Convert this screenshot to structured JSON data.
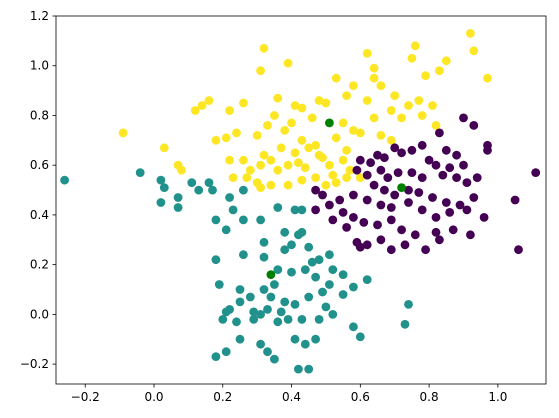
{
  "chart_data": {
    "type": "scatter",
    "title": "",
    "xlabel": "",
    "ylabel": "",
    "xlim": [
      -0.285,
      1.14
    ],
    "ylim": [
      -0.28,
      1.2
    ],
    "x_ticks": [
      -0.2,
      0.0,
      0.2,
      0.4,
      0.6,
      0.8,
      1.0
    ],
    "x_tick_labels": [
      "−0.2",
      "0.0",
      "0.2",
      "0.4",
      "0.6",
      "0.8",
      "1.0"
    ],
    "y_ticks": [
      -0.2,
      0.0,
      0.2,
      0.4,
      0.6,
      0.8,
      1.0,
      1.2
    ],
    "y_tick_labels": [
      "−0.2",
      "0.0",
      "0.2",
      "0.4",
      "0.6",
      "0.8",
      "1.0",
      "1.2"
    ],
    "grid": false,
    "colors": {
      "cluster_yellow": "#fde725",
      "cluster_teal": "#21918c",
      "cluster_purple": "#440154",
      "centroid": "#008000"
    },
    "series": [
      {
        "color": "#fde725",
        "points": [
          [
            0.32,
            1.07
          ],
          [
            0.31,
            0.98
          ],
          [
            0.39,
            1.01
          ],
          [
            0.62,
            1.05
          ],
          [
            0.64,
            0.99
          ],
          [
            0.76,
            1.08
          ],
          [
            0.75,
            1.03
          ],
          [
            0.92,
            1.13
          ],
          [
            0.93,
            1.06
          ],
          [
            0.85,
            1.02
          ],
          [
            0.79,
            0.96
          ],
          [
            0.83,
            0.98
          ],
          [
            0.97,
            0.95
          ],
          [
            0.53,
            0.95
          ],
          [
            0.58,
            0.92
          ],
          [
            0.56,
            0.88
          ],
          [
            0.64,
            0.95
          ],
          [
            0.66,
            0.92
          ],
          [
            0.62,
            0.86
          ],
          [
            0.7,
            0.88
          ],
          [
            0.74,
            0.84
          ],
          [
            0.77,
            0.86
          ],
          [
            0.81,
            0.84
          ],
          [
            0.69,
            0.82
          ],
          [
            0.72,
            0.79
          ],
          [
            0.78,
            0.8
          ],
          [
            0.82,
            0.76
          ],
          [
            0.64,
            0.79
          ],
          [
            0.14,
            0.84
          ],
          [
            0.16,
            0.86
          ],
          [
            0.12,
            0.82
          ],
          [
            0.22,
            0.82
          ],
          [
            0.26,
            0.85
          ],
          [
            0.36,
            0.87
          ],
          [
            0.41,
            0.84
          ],
          [
            0.43,
            0.83
          ],
          [
            0.48,
            0.86
          ],
          [
            0.5,
            0.85
          ],
          [
            0.35,
            0.8
          ],
          [
            0.4,
            0.77
          ],
          [
            0.46,
            0.79
          ],
          [
            0.55,
            0.77
          ],
          [
            0.58,
            0.74
          ],
          [
            0.6,
            0.73
          ],
          [
            0.66,
            0.72
          ],
          [
            0.69,
            0.7
          ],
          [
            -0.09,
            0.73
          ],
          [
            0.18,
            0.7
          ],
          [
            0.21,
            0.71
          ],
          [
            0.24,
            0.73
          ],
          [
            0.3,
            0.72
          ],
          [
            0.33,
            0.76
          ],
          [
            0.38,
            0.74
          ],
          [
            0.43,
            0.7
          ],
          [
            0.47,
            0.68
          ],
          [
            0.53,
            0.71
          ],
          [
            0.56,
            0.66
          ],
          [
            0.48,
            0.64
          ],
          [
            0.45,
            0.67
          ],
          [
            0.37,
            0.67
          ],
          [
            0.41,
            0.65
          ],
          [
            0.03,
            0.67
          ],
          [
            0.07,
            0.6
          ],
          [
            0.08,
            0.58
          ],
          [
            0.22,
            0.62
          ],
          [
            0.26,
            0.62
          ],
          [
            0.28,
            0.58
          ],
          [
            0.32,
            0.64
          ],
          [
            0.34,
            0.62
          ],
          [
            0.31,
            0.6
          ],
          [
            0.36,
            0.58
          ],
          [
            0.39,
            0.6
          ],
          [
            0.42,
            0.61
          ],
          [
            0.44,
            0.59
          ],
          [
            0.49,
            0.63
          ],
          [
            0.51,
            0.6
          ],
          [
            0.55,
            0.62
          ],
          [
            0.57,
            0.58
          ],
          [
            0.6,
            0.55
          ],
          [
            0.52,
            0.56
          ],
          [
            0.23,
            0.55
          ],
          [
            0.3,
            0.53
          ],
          [
            0.34,
            0.52
          ],
          [
            0.39,
            0.52
          ],
          [
            0.31,
            0.51
          ],
          [
            0.27,
            0.55
          ],
          [
            0.43,
            0.54
          ],
          [
            0.47,
            0.55
          ],
          [
            0.5,
            0.52
          ],
          [
            0.53,
            0.53
          ],
          [
            0.56,
            0.55
          ]
        ]
      },
      {
        "color": "#21918c",
        "points": [
          [
            -0.26,
            0.54
          ],
          [
            -0.04,
            0.57
          ],
          [
            0.02,
            0.54
          ],
          [
            0.03,
            0.51
          ],
          [
            0.07,
            0.47
          ],
          [
            0.07,
            0.43
          ],
          [
            0.11,
            0.53
          ],
          [
            0.13,
            0.5
          ],
          [
            0.16,
            0.53
          ],
          [
            0.17,
            0.5
          ],
          [
            0.02,
            0.45
          ],
          [
            0.18,
            0.38
          ],
          [
            0.22,
            0.47
          ],
          [
            0.26,
            0.5
          ],
          [
            0.23,
            0.42
          ],
          [
            0.26,
            0.38
          ],
          [
            0.31,
            0.38
          ],
          [
            0.21,
            0.34
          ],
          [
            0.26,
            0.24
          ],
          [
            0.32,
            0.29
          ],
          [
            0.32,
            0.23
          ],
          [
            0.36,
            0.43
          ],
          [
            0.41,
            0.42
          ],
          [
            0.43,
            0.42
          ],
          [
            0.38,
            0.33
          ],
          [
            0.42,
            0.32
          ],
          [
            0.43,
            0.33
          ],
          [
            0.4,
            0.28
          ],
          [
            0.45,
            0.27
          ],
          [
            0.38,
            0.26
          ],
          [
            0.36,
            0.18
          ],
          [
            0.4,
            0.17
          ],
          [
            0.44,
            0.18
          ],
          [
            0.46,
            0.21
          ],
          [
            0.48,
            0.22
          ],
          [
            0.51,
            0.24
          ],
          [
            0.47,
            0.15
          ],
          [
            0.51,
            0.12
          ],
          [
            0.49,
            0.09
          ],
          [
            0.55,
            0.08
          ],
          [
            0.58,
            0.11
          ],
          [
            0.62,
            0.14
          ],
          [
            0.55,
            0.16
          ],
          [
            0.52,
            0.18
          ],
          [
            0.18,
            0.22
          ],
          [
            0.19,
            0.12
          ],
          [
            0.22,
            0.02
          ],
          [
            0.25,
            0.1
          ],
          [
            0.28,
            0.07
          ],
          [
            0.32,
            0.1
          ],
          [
            0.35,
            0.12
          ],
          [
            0.34,
            0.07
          ],
          [
            0.38,
            0.05
          ],
          [
            0.41,
            0.04
          ],
          [
            0.45,
            0.07
          ],
          [
            0.5,
            0.03
          ],
          [
            0.37,
            0.01
          ],
          [
            0.33,
            0.02
          ],
          [
            0.29,
            0.01
          ],
          [
            0.25,
            0.05
          ],
          [
            0.21,
            0.01
          ],
          [
            0.2,
            -0.02
          ],
          [
            0.24,
            -0.03
          ],
          [
            0.29,
            -0.02
          ],
          [
            0.31,
            0.0
          ],
          [
            0.36,
            -0.03
          ],
          [
            0.39,
            -0.02
          ],
          [
            0.43,
            -0.02
          ],
          [
            0.48,
            -0.02
          ],
          [
            0.52,
            0.0
          ],
          [
            0.58,
            -0.05
          ],
          [
            0.6,
            -0.09
          ],
          [
            0.41,
            -0.1
          ],
          [
            0.44,
            -0.12
          ],
          [
            0.47,
            -0.1
          ],
          [
            0.25,
            -0.1
          ],
          [
            0.31,
            -0.12
          ],
          [
            0.18,
            -0.17
          ],
          [
            0.21,
            -0.15
          ],
          [
            0.33,
            -0.15
          ],
          [
            0.35,
            -0.18
          ],
          [
            0.42,
            -0.22
          ],
          [
            0.45,
            -0.22
          ],
          [
            0.74,
            0.04
          ],
          [
            0.73,
            -0.04
          ]
        ]
      },
      {
        "color": "#440154",
        "points": [
          [
            0.9,
            0.79
          ],
          [
            0.93,
            0.76
          ],
          [
            0.83,
            0.73
          ],
          [
            0.78,
            0.68
          ],
          [
            0.85,
            0.66
          ],
          [
            0.88,
            0.64
          ],
          [
            0.97,
            0.68
          ],
          [
            0.97,
            0.66
          ],
          [
            0.7,
            0.67
          ],
          [
            0.72,
            0.65
          ],
          [
            0.75,
            0.66
          ],
          [
            0.8,
            0.62
          ],
          [
            0.82,
            0.6
          ],
          [
            0.86,
            0.59
          ],
          [
            0.9,
            0.6
          ],
          [
            0.65,
            0.64
          ],
          [
            0.67,
            0.63
          ],
          [
            0.63,
            0.61
          ],
          [
            0.6,
            0.62
          ],
          [
            0.59,
            0.58
          ],
          [
            0.62,
            0.56
          ],
          [
            0.66,
            0.58
          ],
          [
            0.68,
            0.55
          ],
          [
            0.71,
            0.57
          ],
          [
            0.75,
            0.57
          ],
          [
            0.78,
            0.55
          ],
          [
            0.84,
            0.56
          ],
          [
            0.88,
            0.55
          ],
          [
            0.91,
            0.53
          ],
          [
            0.94,
            0.55
          ],
          [
            0.64,
            0.52
          ],
          [
            0.67,
            0.5
          ],
          [
            0.7,
            0.48
          ],
          [
            0.74,
            0.5
          ],
          [
            0.77,
            0.49
          ],
          [
            0.81,
            0.47
          ],
          [
            0.85,
            0.45
          ],
          [
            0.89,
            0.44
          ],
          [
            0.93,
            0.47
          ],
          [
            0.47,
            0.5
          ],
          [
            0.49,
            0.48
          ],
          [
            0.54,
            0.46
          ],
          [
            0.58,
            0.48
          ],
          [
            0.62,
            0.46
          ],
          [
            0.66,
            0.44
          ],
          [
            0.69,
            0.43
          ],
          [
            0.74,
            0.45
          ],
          [
            0.78,
            0.42
          ],
          [
            0.82,
            0.39
          ],
          [
            0.86,
            0.41
          ],
          [
            0.91,
            0.42
          ],
          [
            0.96,
            0.39
          ],
          [
            1.05,
            0.46
          ],
          [
            0.47,
            0.42
          ],
          [
            0.51,
            0.44
          ],
          [
            0.55,
            0.41
          ],
          [
            0.58,
            0.39
          ],
          [
            0.52,
            0.38
          ],
          [
            0.56,
            0.35
          ],
          [
            0.61,
            0.37
          ],
          [
            0.65,
            0.36
          ],
          [
            0.69,
            0.38
          ],
          [
            0.72,
            0.34
          ],
          [
            0.76,
            0.32
          ],
          [
            0.82,
            0.33
          ],
          [
            0.87,
            0.34
          ],
          [
            0.92,
            0.32
          ],
          [
            0.59,
            0.29
          ],
          [
            0.6,
            0.27
          ],
          [
            0.66,
            0.3
          ],
          [
            0.69,
            0.26
          ],
          [
            0.73,
            0.28
          ],
          [
            0.79,
            0.26
          ],
          [
            0.83,
            0.3
          ],
          [
            1.06,
            0.26
          ],
          [
            1.11,
            0.57
          ],
          [
            0.62,
            0.28
          ]
        ]
      }
    ],
    "centroids": {
      "color": "#008000",
      "points": [
        [
          0.51,
          0.77
        ],
        [
          0.72,
          0.51
        ],
        [
          0.34,
          0.16
        ]
      ]
    }
  }
}
